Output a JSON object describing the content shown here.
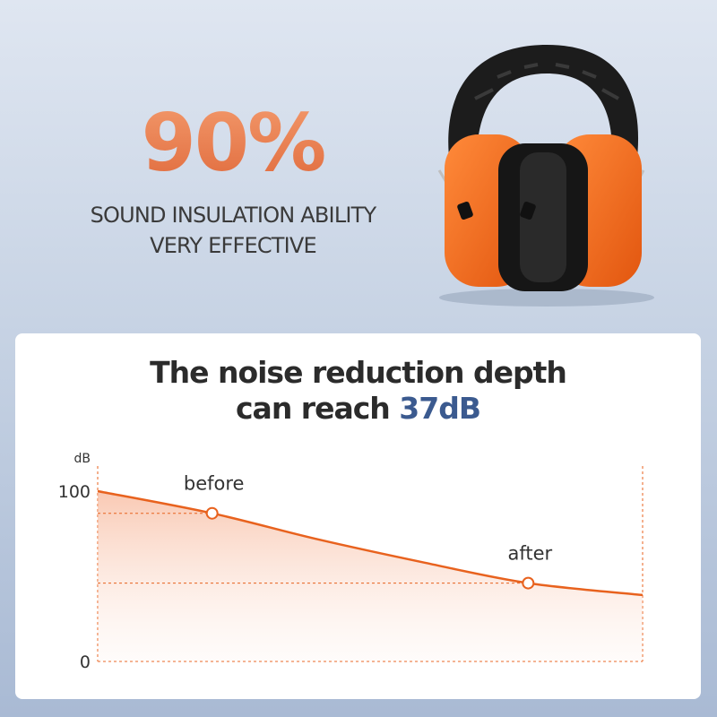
{
  "hero": {
    "percent": "90%",
    "line1": "SOUND INSULATION ABILITY",
    "line2": "VERY EFFECTIVE"
  },
  "headline": {
    "line1": "The noise reduction depth",
    "line2_prefix": "can reach ",
    "line2_highlight": "37dB"
  },
  "colors": {
    "accent_orange": "#e8621e",
    "highlight_blue": "#3b5a8f",
    "earmuff_cup": "#f26a1b",
    "earmuff_band": "#1c1c1c"
  },
  "chart_data": {
    "type": "area",
    "ylabel": "dB",
    "ylim": [
      0,
      100
    ],
    "yticks": [
      0,
      100
    ],
    "curve_points": [
      {
        "x": 0,
        "y": 100
      },
      {
        "x": 0.21,
        "y": 87
      },
      {
        "x": 0.4,
        "y": 72
      },
      {
        "x": 0.6,
        "y": 58
      },
      {
        "x": 0.79,
        "y": 46
      },
      {
        "x": 1,
        "y": 39
      }
    ],
    "markers": [
      {
        "label": "before",
        "x": 0.21,
        "y": 87
      },
      {
        "label": "after",
        "x": 0.79,
        "y": 46
      }
    ]
  }
}
